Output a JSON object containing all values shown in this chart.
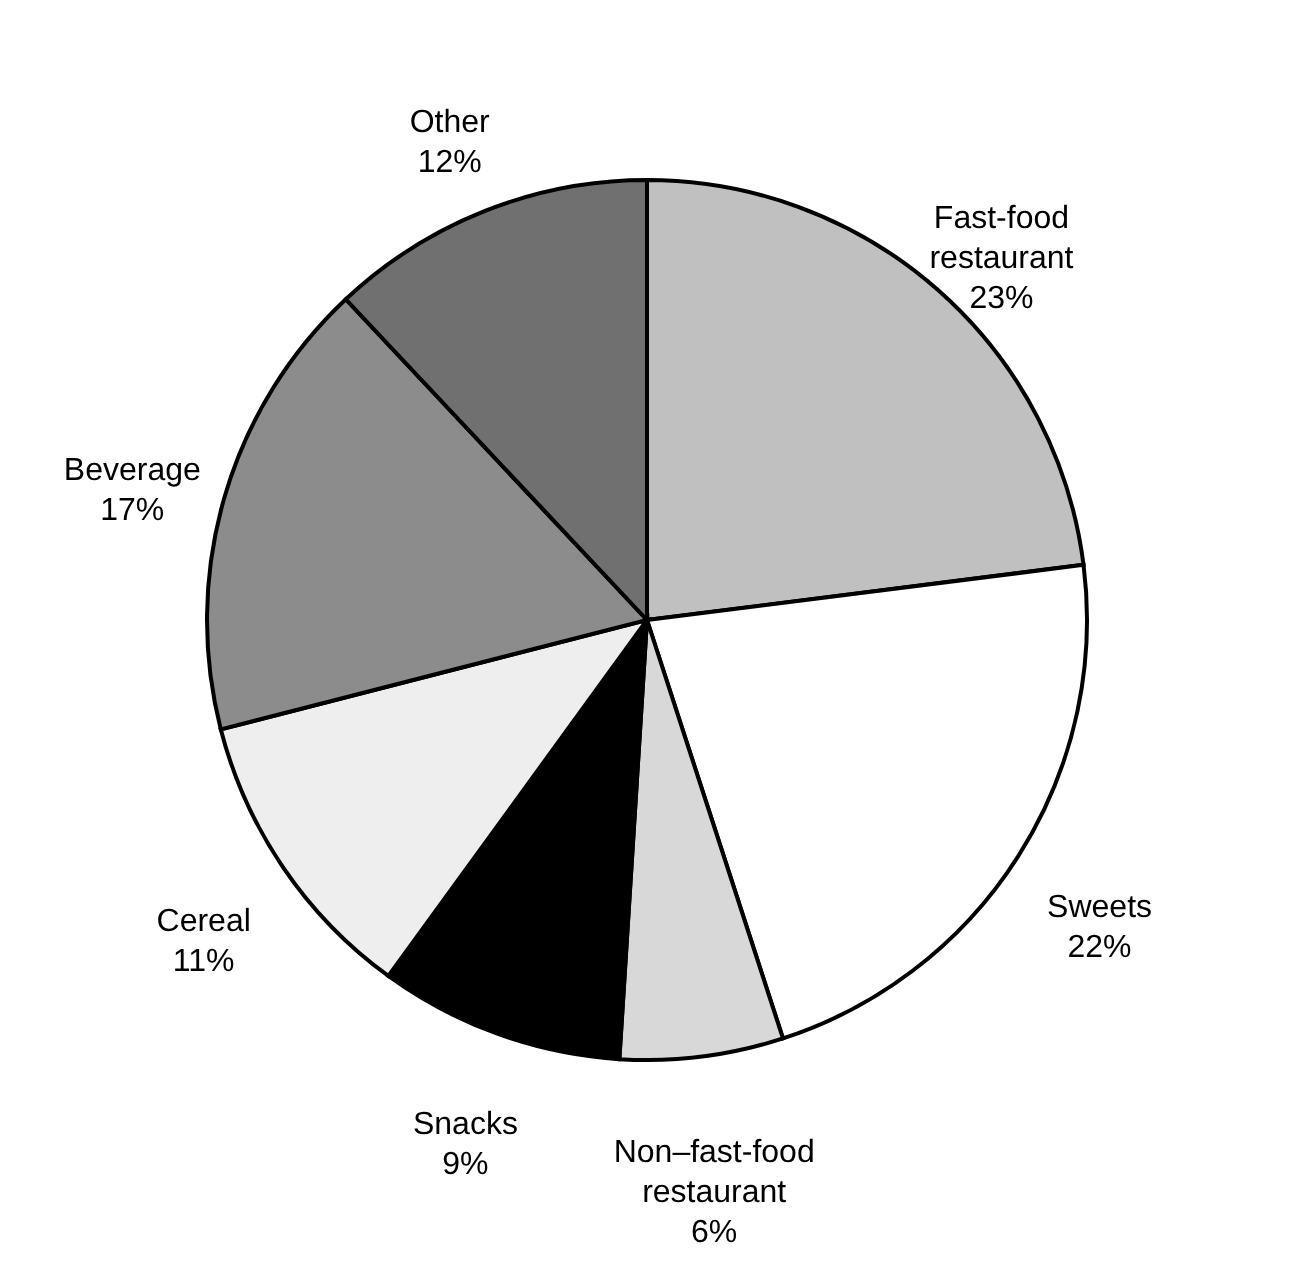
{
  "chart_data": {
    "type": "pie",
    "categories": [
      "Fast-food restaurant",
      "Sweets",
      "Non–fast-food restaurant",
      "Snacks",
      "Cereal",
      "Beverage",
      "Other"
    ],
    "values": [
      23,
      22,
      6,
      9,
      11,
      17,
      12
    ],
    "value_labels": [
      "23%",
      "22%",
      "6%",
      "9%",
      "11%",
      "17%",
      "12%"
    ],
    "colors": [
      "#c0c0c0",
      "#ffffff",
      "#d8d8d8",
      "#000000",
      "#eeeeee",
      "#8c8c8c",
      "#707070"
    ],
    "legend": false
  }
}
